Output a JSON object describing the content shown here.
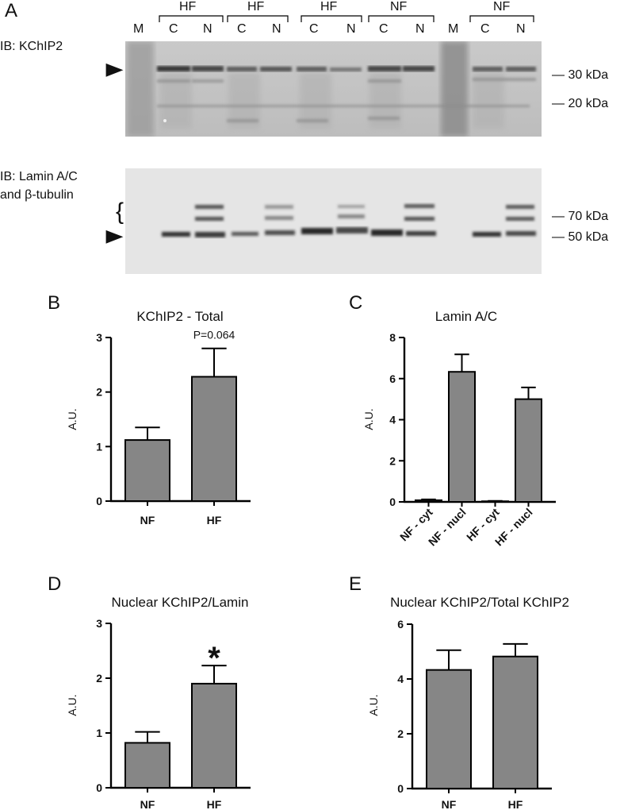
{
  "figure": {
    "panel_a": {
      "letter": "A",
      "lane_groups": [
        "HF",
        "HF",
        "HF",
        "NF",
        "NF"
      ],
      "lanes": [
        "M",
        "C",
        "N",
        "C",
        "N",
        "C",
        "N",
        "C",
        "N",
        "M",
        "C",
        "N"
      ],
      "blot1": {
        "label": "IB: KChIP2",
        "markers": [
          "— 30 kDa",
          "— 20 kDa"
        ],
        "arrow": "▶"
      },
      "blot2": {
        "label_line1": "IB: Lamin A/C",
        "label_line2": "and β-tubulin",
        "brace": "{",
        "markers": [
          "— 70 kDa",
          "— 50 kDa"
        ],
        "arrow": "▶"
      }
    },
    "panel_b": {
      "letter": "B"
    },
    "panel_c": {
      "letter": "C"
    },
    "panel_d": {
      "letter": "D"
    },
    "panel_e": {
      "letter": "E"
    },
    "bar_color": "#868686",
    "axis_color": "#000000"
  },
  "chart_data": [
    {
      "type": "bar",
      "title": "KChIP2 - Total",
      "ylabel": "A.U.",
      "xlabel": "",
      "categories": [
        "NF",
        "HF"
      ],
      "values": [
        1.12,
        2.28
      ],
      "errors": [
        0.23,
        0.52
      ],
      "ylim": [
        0,
        3
      ],
      "yticks": [
        "0",
        "1",
        "2",
        "3"
      ],
      "annotation": {
        "text": "P=0.064",
        "category": "HF"
      },
      "rotate_labels": false
    },
    {
      "type": "bar",
      "title": "Lamin A/C",
      "ylabel": "A.U.",
      "xlabel": "",
      "categories": [
        "NF - cyt",
        "NF - nucl",
        "HF - cyt",
        "HF - nucl"
      ],
      "values": [
        0.08,
        6.33,
        0.03,
        5.0
      ],
      "errors": [
        0.04,
        0.85,
        0.02,
        0.57
      ],
      "ylim": [
        0,
        8
      ],
      "yticks": [
        "0",
        "2",
        "4",
        "6",
        "8"
      ],
      "rotate_labels": true
    },
    {
      "type": "bar",
      "title": "Nuclear KChIP2/Lamin",
      "ylabel": "A.U.",
      "xlabel": "",
      "categories": [
        "NF",
        "HF"
      ],
      "values": [
        0.82,
        1.9
      ],
      "errors": [
        0.2,
        0.33
      ],
      "ylim": [
        0,
        3
      ],
      "yticks": [
        "0",
        "1",
        "2",
        "3"
      ],
      "annotation": {
        "text": "*",
        "category": "HF"
      },
      "rotate_labels": false
    },
    {
      "type": "bar",
      "title": "Nuclear KChIP2/Total KChIP2",
      "ylabel": "A.U.",
      "xlabel": "",
      "categories": [
        "NF",
        "HF"
      ],
      "values": [
        4.33,
        4.82
      ],
      "errors": [
        0.72,
        0.46
      ],
      "ylim": [
        0,
        6
      ],
      "yticks": [
        "0",
        "2",
        "4",
        "6"
      ],
      "rotate_labels": false
    }
  ]
}
